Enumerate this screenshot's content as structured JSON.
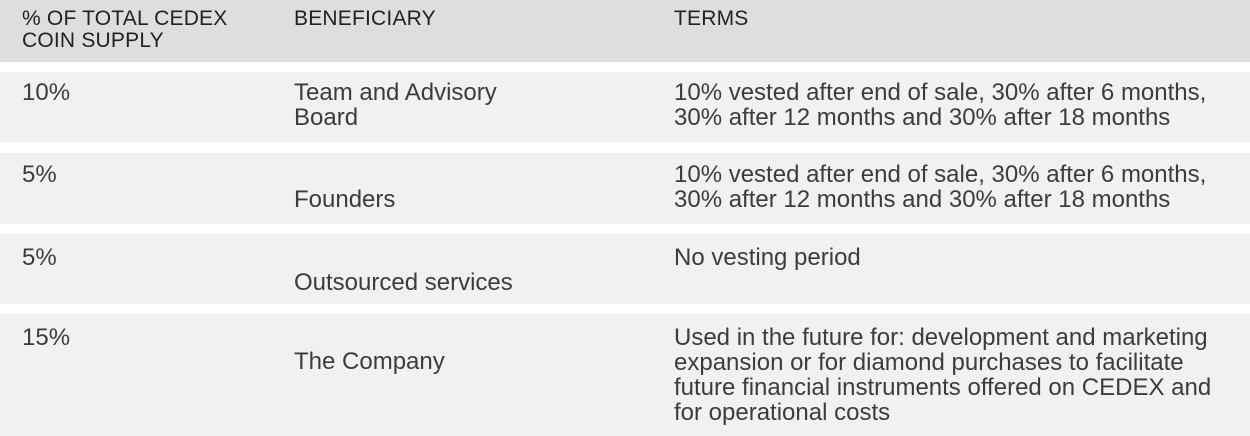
{
  "columns": {
    "pct_line1": "% OF TOTAL CEDEX",
    "pct_line2": "COIN SUPPLY",
    "beneficiary": "BENEFICIARY",
    "terms": "TERMS"
  },
  "rows": [
    {
      "pct": "10%",
      "beneficiary_line1": "Team and Advisory",
      "beneficiary_line2": "Board",
      "terms_line1": "10% vested after end of sale, 30% after 6 months,",
      "terms_line2": "30% after 12 months and 30% after 18 months"
    },
    {
      "pct": "5%",
      "beneficiary": "Founders",
      "terms_line1": "10% vested after end of sale, 30% after 6 months,",
      "terms_line2": "30% after 12 months and 30% after 18 months"
    },
    {
      "pct": "5%",
      "beneficiary": "Outsourced services",
      "terms_line1": "No vesting period"
    },
    {
      "pct": "15%",
      "beneficiary": "The Company",
      "terms_line1": "Used in the future for: development and marketing",
      "terms_line2": "expansion or for diamond purchases to facilitate",
      "terms_line3": "future financial instruments offered on CEDEX and",
      "terms_line4": "for operational costs"
    }
  ]
}
